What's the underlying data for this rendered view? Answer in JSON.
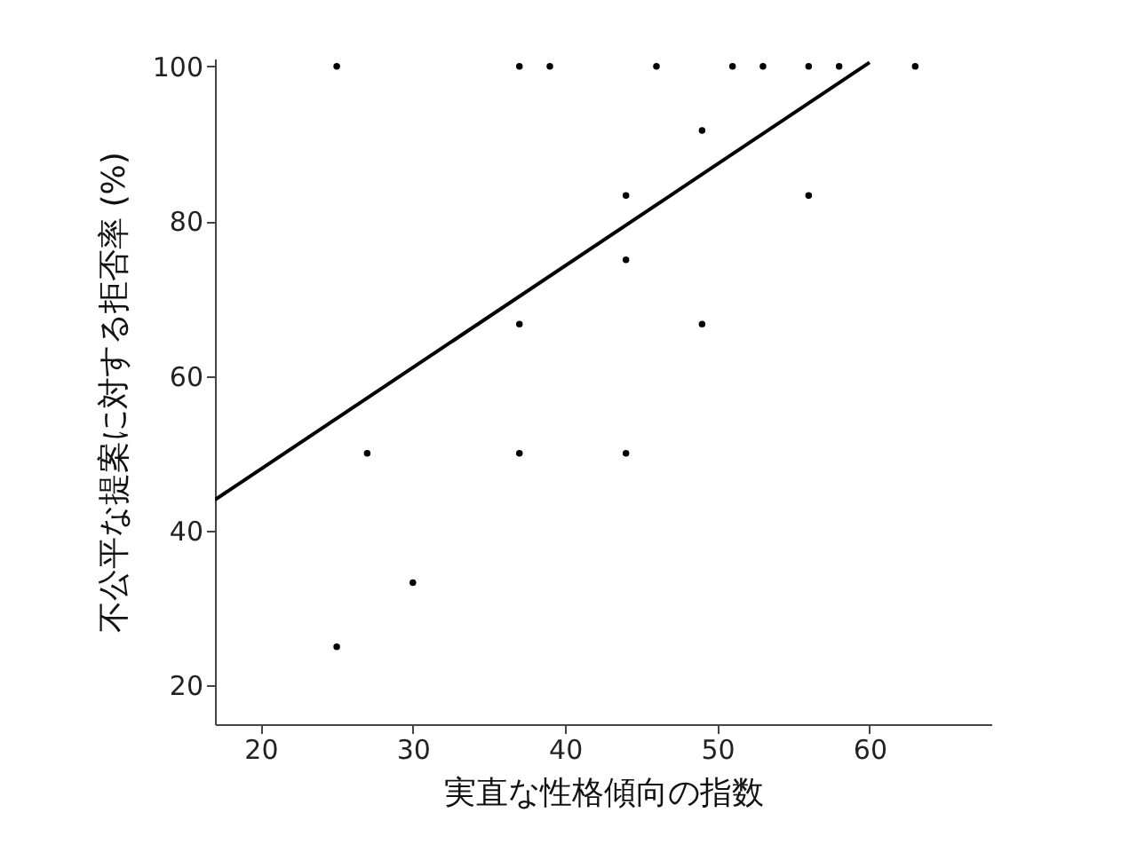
{
  "chart_data": {
    "type": "scatter",
    "xlabel": "実直な性格傾向の指数",
    "ylabel": "不公平な提案に対する拒否率 (%)",
    "xlim": [
      17,
      68
    ],
    "ylim": [
      15,
      101
    ],
    "xticks": [
      20,
      30,
      40,
      50,
      60
    ],
    "yticks": [
      20,
      40,
      60,
      80,
      100
    ],
    "grid": false,
    "series": [
      {
        "marker": "circle",
        "color": "#000000",
        "x": [
          25,
          37,
          39,
          46,
          51,
          53,
          56,
          58,
          63,
          44,
          56,
          49,
          44,
          37,
          49,
          37,
          44,
          27,
          30,
          25
        ],
        "values": [
          100,
          100,
          100,
          100,
          100,
          100,
          100,
          100,
          100,
          83.3,
          83.3,
          91.7,
          75,
          66.7,
          66.7,
          50,
          50,
          50,
          33.3,
          25
        ]
      },
      {
        "type": "line",
        "marker": "none",
        "color": "#000000",
        "x": [
          17,
          60
        ],
        "values": [
          44,
          100.5
        ]
      }
    ]
  }
}
